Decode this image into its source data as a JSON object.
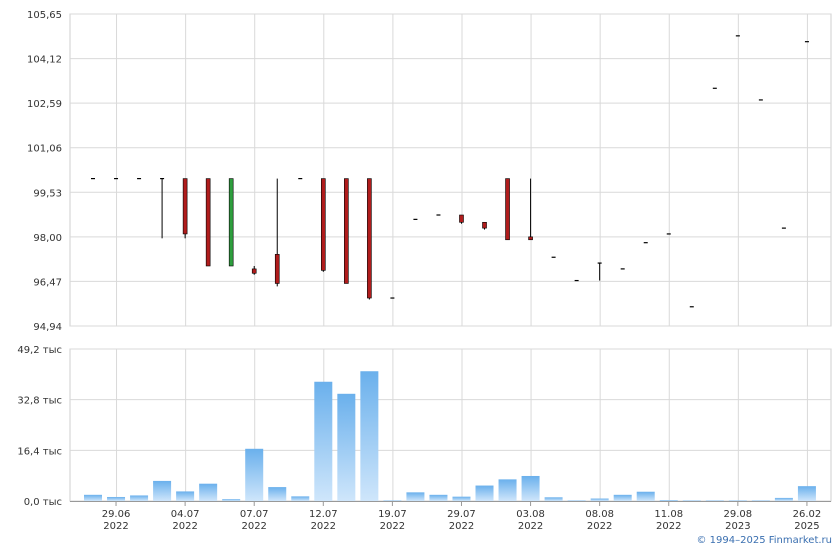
{
  "chart_data": [
    {
      "type": "candlestick",
      "title": "",
      "grid": true,
      "ylim": [
        94.94,
        105.65
      ],
      "y_ticks": [
        "105,65",
        "104,12",
        "102,59",
        "101,06",
        "99,53",
        "98,00",
        "96,47",
        "94,94"
      ],
      "candles": [
        {
          "o": 100.0,
          "h": 100.0,
          "l": 100.0,
          "c": 100.0
        },
        {
          "o": 100.0,
          "h": 100.0,
          "l": 100.0,
          "c": 100.0
        },
        {
          "o": 100.0,
          "h": 100.0,
          "l": 100.0,
          "c": 100.0
        },
        {
          "o": 100.0,
          "h": 100.0,
          "l": 97.95,
          "c": 100.0
        },
        {
          "o": 100.0,
          "h": 100.0,
          "l": 97.95,
          "c": 98.1
        },
        {
          "o": 100.0,
          "h": 100.0,
          "l": 97.0,
          "c": 97.0
        },
        {
          "o": 97.0,
          "h": 100.0,
          "l": 97.0,
          "c": 100.0
        },
        {
          "o": 96.9,
          "h": 97.0,
          "l": 96.7,
          "c": 96.75
        },
        {
          "o": 97.4,
          "h": 100.0,
          "l": 96.3,
          "c": 96.4
        },
        {
          "o": 100.0,
          "h": 100.0,
          "l": 100.0,
          "c": 100.0
        },
        {
          "o": 100.0,
          "h": 100.0,
          "l": 96.8,
          "c": 96.85
        },
        {
          "o": 100.0,
          "h": 100.0,
          "l": 96.4,
          "c": 96.4
        },
        {
          "o": 100.0,
          "h": 100.0,
          "l": 95.85,
          "c": 95.9
        },
        {
          "o": 95.9,
          "h": 95.9,
          "l": 95.9,
          "c": 95.9
        },
        {
          "o": 98.6,
          "h": 98.6,
          "l": 98.6,
          "c": 98.6
        },
        {
          "o": 98.75,
          "h": 98.75,
          "l": 98.75,
          "c": 98.75
        },
        {
          "o": 98.75,
          "h": 98.75,
          "l": 98.45,
          "c": 98.5
        },
        {
          "o": 98.5,
          "h": 98.5,
          "l": 98.25,
          "c": 98.3
        },
        {
          "o": 100.0,
          "h": 100.0,
          "l": 97.9,
          "c": 97.9
        },
        {
          "o": 98.0,
          "h": 100.0,
          "l": 97.9,
          "c": 97.9
        },
        {
          "o": 97.3,
          "h": 97.3,
          "l": 97.3,
          "c": 97.3
        },
        {
          "o": 96.5,
          "h": 96.5,
          "l": 96.5,
          "c": 96.5
        },
        {
          "o": 97.1,
          "h": 97.1,
          "l": 96.5,
          "c": 97.1
        },
        {
          "o": 96.9,
          "h": 96.9,
          "l": 96.9,
          "c": 96.9
        },
        {
          "o": 97.8,
          "h": 97.8,
          "l": 97.8,
          "c": 97.8
        },
        {
          "o": 98.1,
          "h": 98.1,
          "l": 98.1,
          "c": 98.1
        },
        {
          "o": 95.6,
          "h": 95.6,
          "l": 95.6,
          "c": 95.6
        },
        {
          "o": 103.1,
          "h": 103.1,
          "l": 103.1,
          "c": 103.1
        },
        {
          "o": 104.9,
          "h": 104.9,
          "l": 104.9,
          "c": 104.9
        },
        {
          "o": 102.7,
          "h": 102.7,
          "l": 102.7,
          "c": 102.7
        },
        {
          "o": 98.3,
          "h": 98.3,
          "l": 98.3,
          "c": 98.3
        },
        {
          "o": 104.7,
          "h": 104.7,
          "l": 104.7,
          "c": 104.7
        }
      ],
      "colors": {
        "up": "#2e9e3e",
        "down": "#b01c1c",
        "wick": "#000000"
      }
    },
    {
      "type": "bar",
      "title": "",
      "grid": true,
      "ylim": [
        0,
        49.2
      ],
      "y_ticks": [
        "49,2 тыс",
        "32,8 тыс",
        "16,4 тыс",
        "0,0 тыс"
      ],
      "values": [
        2.0,
        1.3,
        1.8,
        6.5,
        3.1,
        5.6,
        0.6,
        16.9,
        4.5,
        1.5,
        38.6,
        34.7,
        42.0,
        0.2,
        2.8,
        2.0,
        1.4,
        5.0,
        7.0,
        8.1,
        1.2,
        0.2,
        0.8,
        2.0,
        3.0,
        0.3,
        0.2,
        0.2,
        0.2,
        0.2,
        1.0,
        4.8
      ],
      "colors": {
        "top": "#6ab0ec",
        "bottom": "#cfe6fb"
      }
    }
  ],
  "x_axis": {
    "ticks": [
      {
        "index": 1,
        "line1": "29.06",
        "line2": "2022"
      },
      {
        "index": 4,
        "line1": "04.07",
        "line2": "2022"
      },
      {
        "index": 7,
        "line1": "07.07",
        "line2": "2022"
      },
      {
        "index": 10,
        "line1": "12.07",
        "line2": "2022"
      },
      {
        "index": 13,
        "line1": "19.07",
        "line2": "2022"
      },
      {
        "index": 16,
        "line1": "29.07",
        "line2": "2022"
      },
      {
        "index": 19,
        "line1": "03.08",
        "line2": "2022"
      },
      {
        "index": 22,
        "line1": "08.08",
        "line2": "2022"
      },
      {
        "index": 25,
        "line1": "11.08",
        "line2": "2022"
      },
      {
        "index": 28,
        "line1": "29.08",
        "line2": "2023"
      },
      {
        "index": 31,
        "line1": "26.02",
        "line2": "2025"
      }
    ]
  },
  "footer": {
    "copyright": "© 1994–2025 Finmarket.ru"
  }
}
